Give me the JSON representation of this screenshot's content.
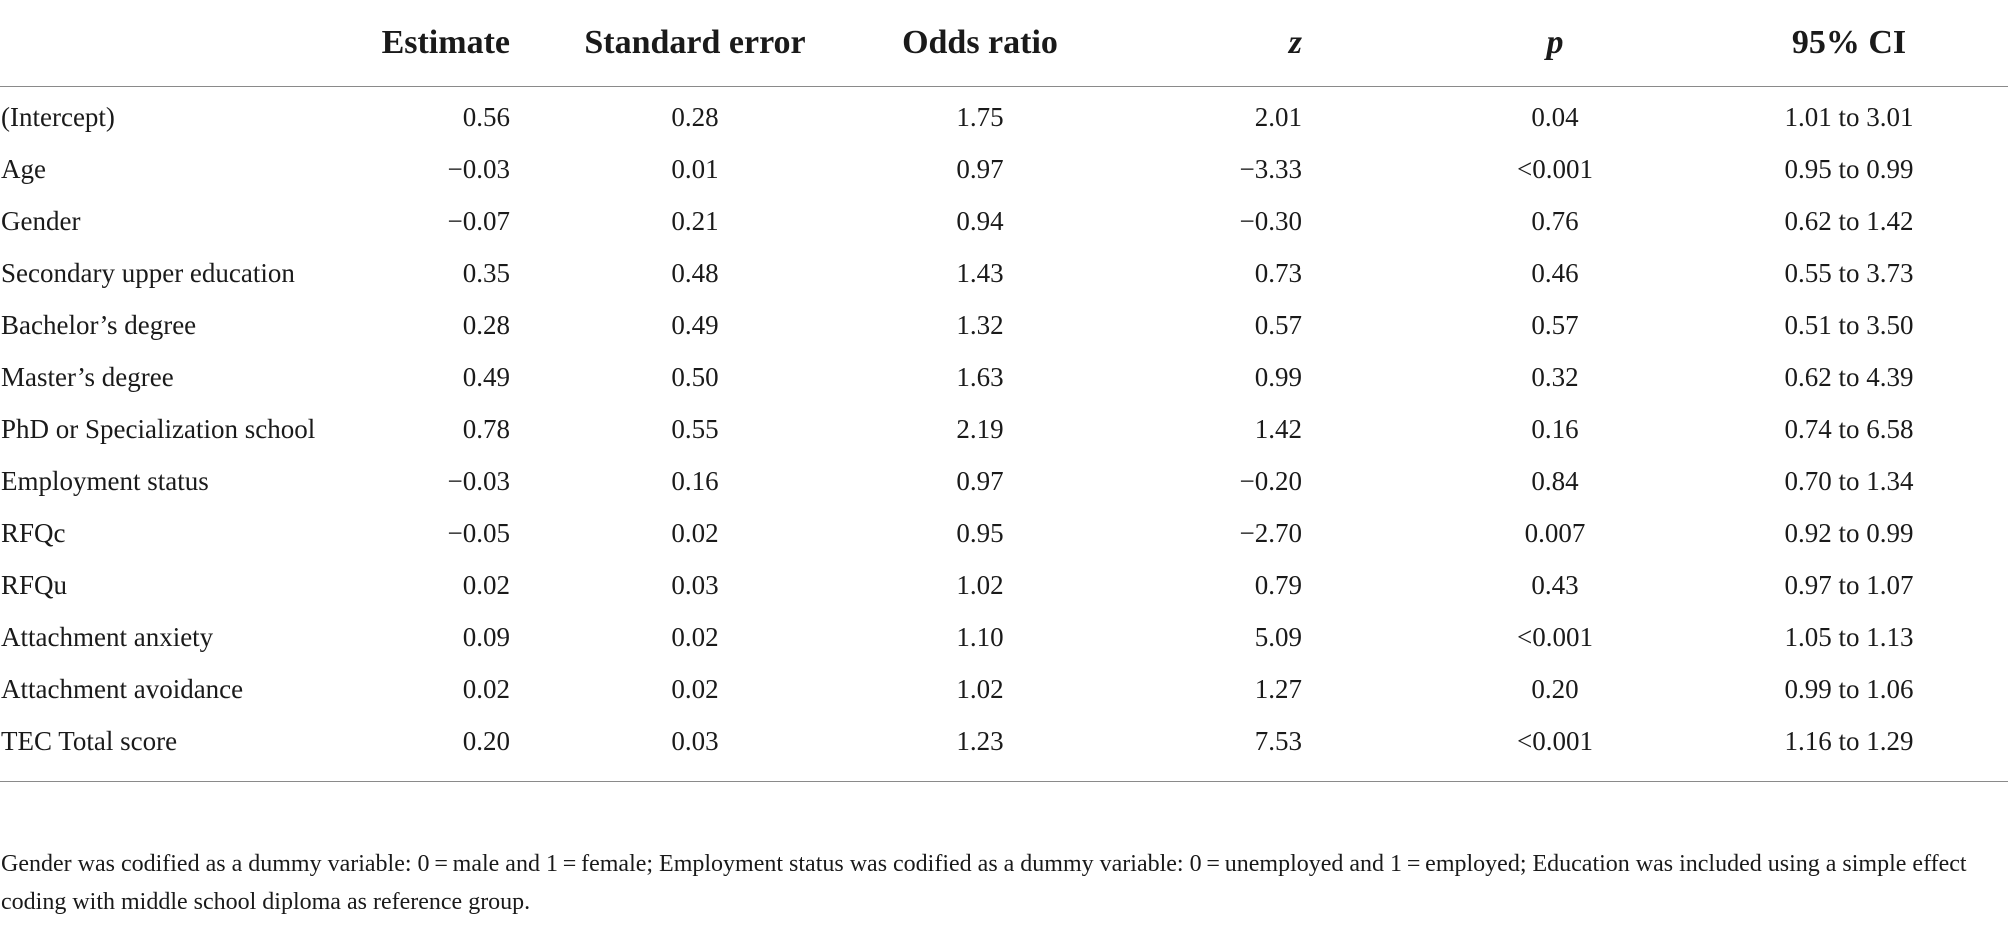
{
  "table": {
    "columns": [
      "",
      "Estimate",
      "Standard error",
      "Odds ratio",
      "z",
      "p",
      "95% CI"
    ],
    "rows": [
      [
        "(Intercept)",
        "0.56",
        "0.28",
        "1.75",
        "2.01",
        "0.04",
        "1.01 to 3.01"
      ],
      [
        "Age",
        "−0.03",
        "0.01",
        "0.97",
        "−3.33",
        "<0.001",
        "0.95 to 0.99"
      ],
      [
        "Gender",
        "−0.07",
        "0.21",
        "0.94",
        "−0.30",
        "0.76",
        "0.62 to 1.42"
      ],
      [
        "Secondary upper education",
        "0.35",
        "0.48",
        "1.43",
        "0.73",
        "0.46",
        "0.55 to 3.73"
      ],
      [
        "Bachelor’s degree",
        "0.28",
        "0.49",
        "1.32",
        "0.57",
        "0.57",
        "0.51 to 3.50"
      ],
      [
        "Master’s degree",
        "0.49",
        "0.50",
        "1.63",
        "0.99",
        "0.32",
        "0.62 to 4.39"
      ],
      [
        "PhD or Specialization school",
        "0.78",
        "0.55",
        "2.19",
        "1.42",
        "0.16",
        "0.74 to 6.58"
      ],
      [
        "Employment status",
        "−0.03",
        "0.16",
        "0.97",
        "−0.20",
        "0.84",
        "0.70 to 1.34"
      ],
      [
        "RFQc",
        "−0.05",
        "0.02",
        "0.95",
        "−2.70",
        "0.007",
        "0.92 to 0.99"
      ],
      [
        "RFQu",
        "0.02",
        "0.03",
        "1.02",
        "0.79",
        "0.43",
        "0.97 to 1.07"
      ],
      [
        "Attachment anxiety",
        "0.09",
        "0.02",
        "1.10",
        "5.09",
        "<0.001",
        "1.05 to 1.13"
      ],
      [
        "Attachment avoidance",
        "0.02",
        "0.02",
        "1.02",
        "1.27",
        "0.20",
        "0.99 to 1.06"
      ],
      [
        "TEC Total score",
        "0.20",
        "0.03",
        "1.23",
        "7.53",
        "<0.001",
        "1.16 to 1.29"
      ]
    ]
  },
  "footnote": "Gender was codified as a dummy variable: 0 = male and 1 = female; Employment status was codified as a dummy variable: 0 = unemployed and 1 = employed; Education was included using a simple effect coding with middle school diploma as reference group."
}
